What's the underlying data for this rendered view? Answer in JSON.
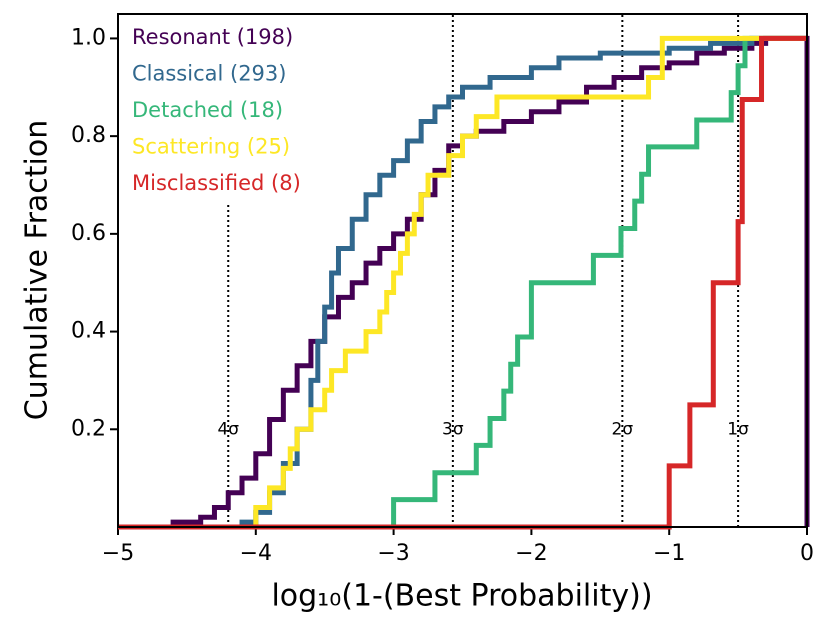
{
  "chart_data": {
    "type": "step",
    "xlabel": "log₁₀(1-(Best Probability))",
    "ylabel": "Cumulative Fraction",
    "xlim": [
      -5,
      0
    ],
    "ylim": [
      0,
      1.05
    ],
    "xticks": [
      {
        "value": -5,
        "label": "−5"
      },
      {
        "value": -4,
        "label": "−4"
      },
      {
        "value": -3,
        "label": "−3"
      },
      {
        "value": -2,
        "label": "−2"
      },
      {
        "value": -1,
        "label": "−1"
      },
      0
    ],
    "yticks": [
      0.2,
      0.4,
      0.6,
      0.8,
      {
        "value": 1,
        "label": "1.0"
      }
    ],
    "legend": "upper left",
    "vlines": [
      {
        "x": -4.2,
        "ymax": 0.66,
        "label": "4σ"
      },
      {
        "x": -2.57,
        "ymax": 1.05,
        "label": "3σ"
      },
      {
        "x": -1.34,
        "ymax": 1.05,
        "label": "2σ"
      },
      {
        "x": -0.5,
        "ymax": 1.05,
        "label": "1σ"
      }
    ],
    "annotation_y": 0.2,
    "series": [
      {
        "name": "Resonant (198)",
        "color": "#440154",
        "x": [
          -5,
          -4.6,
          -4.4,
          -4.3,
          -4.2,
          -4.1,
          -4.0,
          -3.9,
          -3.8,
          -3.7,
          -3.6,
          -3.5,
          -3.4,
          -3.3,
          -3.2,
          -3.1,
          -3.0,
          -2.9,
          -2.8,
          -2.7,
          -2.6,
          -2.5,
          -2.4,
          -2.2,
          -2.0,
          -1.8,
          -1.6,
          -1.4,
          -1.2,
          -1.0,
          -0.8,
          -0.6,
          -0.4,
          -0.3,
          0,
          0
        ],
        "values": [
          0,
          0.01,
          0.02,
          0.04,
          0.07,
          0.1,
          0.15,
          0.22,
          0.28,
          0.33,
          0.38,
          0.43,
          0.47,
          0.5,
          0.54,
          0.57,
          0.6,
          0.63,
          0.68,
          0.73,
          0.78,
          0.8,
          0.81,
          0.83,
          0.85,
          0.87,
          0.9,
          0.92,
          0.94,
          0.95,
          0.97,
          0.98,
          0.99,
          1.0,
          1.0,
          0
        ]
      },
      {
        "name": "Classical (293)",
        "color": "#31688e",
        "x": [
          -5,
          -4.1,
          -4.0,
          -3.9,
          -3.8,
          -3.7,
          -3.6,
          -3.55,
          -3.5,
          -3.45,
          -3.4,
          -3.3,
          -3.2,
          -3.1,
          -3.0,
          -2.9,
          -2.8,
          -2.7,
          -2.6,
          -2.5,
          -2.3,
          -2.0,
          -1.8,
          -1.5,
          -1.0,
          -0.7,
          -0.4,
          0
        ],
        "values": [
          0,
          0.01,
          0.03,
          0.07,
          0.13,
          0.2,
          0.3,
          0.38,
          0.45,
          0.52,
          0.57,
          0.63,
          0.68,
          0.72,
          0.75,
          0.79,
          0.83,
          0.86,
          0.88,
          0.9,
          0.92,
          0.94,
          0.96,
          0.97,
          0.98,
          0.99,
          1.0,
          1.0
        ]
      },
      {
        "name": "Detached (18)",
        "color": "#35b779",
        "x": [
          -5,
          -3.0,
          -2.7,
          -2.4,
          -2.3,
          -2.2,
          -2.15,
          -2.1,
          -2.0,
          -1.55,
          -1.35,
          -1.25,
          -1.2,
          -1.15,
          -0.8,
          -0.55,
          -0.5,
          -0.45,
          0
        ],
        "values": [
          0,
          0.056,
          0.111,
          0.167,
          0.222,
          0.278,
          0.333,
          0.389,
          0.5,
          0.556,
          0.611,
          0.667,
          0.722,
          0.778,
          0.833,
          0.889,
          0.944,
          1.0,
          1.0
        ]
      },
      {
        "name": "Scattering (25)",
        "color": "#fde725",
        "x": [
          -5,
          -4.0,
          -3.9,
          -3.8,
          -3.75,
          -3.7,
          -3.6,
          -3.5,
          -3.45,
          -3.35,
          -3.2,
          -3.1,
          -3.05,
          -3.0,
          -2.95,
          -2.9,
          -2.85,
          -2.8,
          -2.75,
          -2.6,
          -2.5,
          -2.4,
          -2.25,
          -1.15,
          -1.05,
          0
        ],
        "values": [
          0,
          0.04,
          0.08,
          0.12,
          0.16,
          0.2,
          0.24,
          0.28,
          0.32,
          0.36,
          0.4,
          0.44,
          0.48,
          0.52,
          0.56,
          0.6,
          0.64,
          0.68,
          0.72,
          0.76,
          0.8,
          0.84,
          0.88,
          0.92,
          1.0,
          1.0
        ]
      },
      {
        "name": "Misclassified (8)",
        "color": "#d62728",
        "x": [
          -5,
          -1.0,
          -0.85,
          -0.68,
          -0.5,
          -0.47,
          -0.33,
          0
        ],
        "values": [
          0,
          0.125,
          0.25,
          0.5,
          0.625,
          0.875,
          1.0,
          1.0
        ]
      }
    ]
  }
}
